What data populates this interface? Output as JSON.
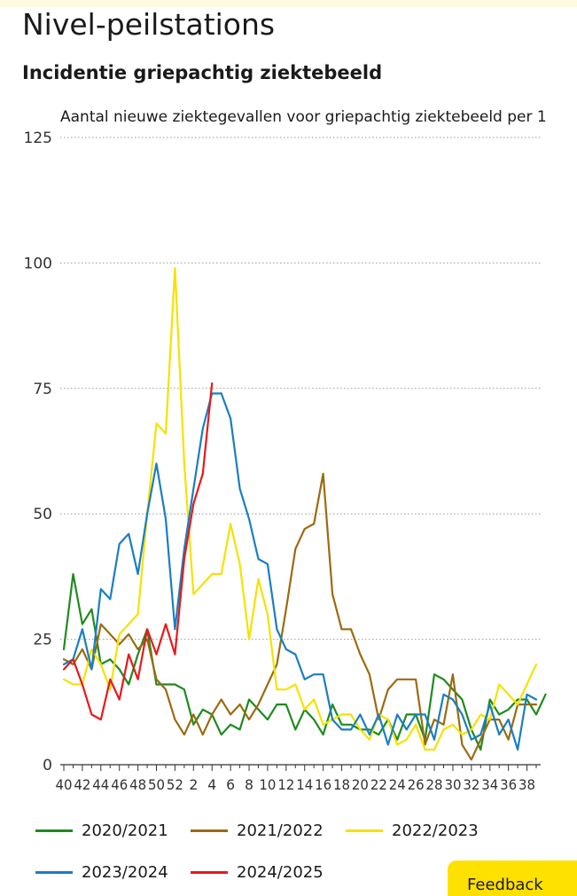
{
  "page": {
    "title": "Nivel-peilstations"
  },
  "chart": {
    "title": "Incidentie griepachtig ziektebeeld"
  },
  "feedback": {
    "label": "Feedback"
  },
  "chart_data": {
    "type": "line",
    "title": "Aantal nieuwe ziektegevallen voor griepachtig ziektebeeld per 1",
    "xlabel": "",
    "ylabel": "",
    "ylim": [
      0,
      125
    ],
    "yticks": [
      0,
      25,
      50,
      75,
      100,
      125
    ],
    "grid": "horizontal-dotted",
    "legend": "bottom",
    "x_ticks": [
      "40",
      "42",
      "44",
      "46",
      "48",
      "50",
      "52",
      "2",
      "4",
      "6",
      "8",
      "10",
      "12",
      "14",
      "16",
      "18",
      "20",
      "22",
      "24",
      "26",
      "28",
      "30",
      "32",
      "34",
      "36",
      "38"
    ],
    "series": [
      {
        "name": "2020/2021",
        "color": "#1f8a1f",
        "values": [
          23,
          38,
          28,
          31,
          20,
          21,
          19,
          16,
          22,
          27,
          16,
          16,
          16,
          15,
          8,
          11,
          10,
          6,
          8,
          7,
          13,
          11,
          9,
          12,
          12,
          7,
          11,
          9,
          6,
          12,
          8,
          8,
          7,
          7,
          6,
          9,
          5,
          10,
          10,
          5,
          18,
          17,
          15,
          13,
          7,
          3,
          13,
          10,
          11,
          13,
          13,
          10,
          14
        ]
      },
      {
        "name": "2021/2022",
        "color": "#9b6b10",
        "values": [
          21,
          20,
          23,
          19,
          28,
          26,
          24,
          26,
          23,
          25,
          17,
          15,
          9,
          6,
          10,
          6,
          10,
          13,
          10,
          12,
          9,
          12,
          16,
          20,
          31,
          43,
          47,
          48,
          58,
          34,
          27,
          27,
          22,
          18,
          9,
          15,
          17,
          17,
          17,
          4,
          9,
          8,
          18,
          4,
          1,
          5,
          9,
          9,
          5,
          12,
          12,
          12
        ]
      },
      {
        "name": "2022/2023",
        "color": "#f5e200",
        "values": [
          17,
          16,
          16,
          23,
          20,
          15,
          26,
          28,
          30,
          50,
          68,
          66,
          99,
          60,
          34,
          36,
          38,
          38,
          48,
          40,
          25,
          37,
          30,
          15,
          15,
          16,
          11,
          13,
          8,
          9,
          10,
          10,
          7,
          5,
          10,
          9,
          4,
          5,
          8,
          3,
          3,
          7,
          8,
          6,
          7,
          10,
          9,
          16,
          14,
          12,
          16,
          20
        ]
      },
      {
        "name": "2023/2024",
        "color": "#1a7ec2",
        "values": [
          20,
          21,
          27,
          19,
          35,
          33,
          44,
          46,
          38,
          50,
          60,
          49,
          27,
          43,
          55,
          67,
          74,
          74,
          69,
          55,
          49,
          41,
          40,
          27,
          23,
          22,
          17,
          18,
          18,
          9,
          7,
          7,
          10,
          6,
          10,
          4,
          10,
          7,
          10,
          10,
          5,
          14,
          13,
          10,
          5,
          6,
          12,
          6,
          9,
          3,
          14,
          13
        ]
      },
      {
        "name": "2024/2025",
        "color": "#e8191b",
        "values": [
          19,
          21,
          16,
          10,
          9,
          17,
          13,
          22,
          17,
          27,
          22,
          28,
          22,
          41,
          52,
          58,
          76
        ]
      }
    ]
  }
}
